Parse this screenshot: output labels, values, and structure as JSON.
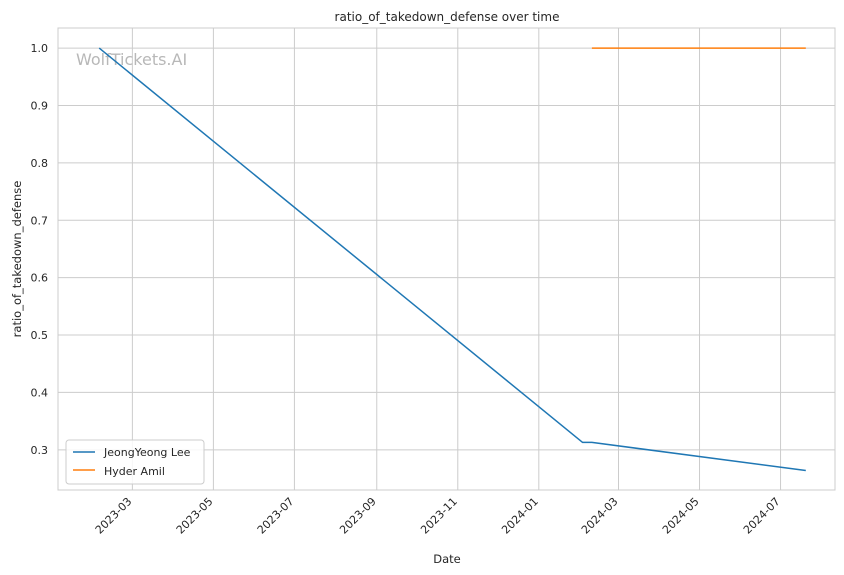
{
  "chart_data": {
    "type": "line",
    "title": "ratio_of_takedown_defense over time",
    "xlabel": "Date",
    "ylabel": "ratio_of_takedown_defense",
    "watermark": "WolfTickets.AI",
    "grid": true,
    "legend_position": "lower-left",
    "xlim": [
      "2023-01-04",
      "2024-08-11"
    ],
    "ylim": [
      0.23,
      1.035
    ],
    "x_ticks": [
      {
        "date": "2023-03-01",
        "label": "2023-03"
      },
      {
        "date": "2023-05-01",
        "label": "2023-05"
      },
      {
        "date": "2023-07-01",
        "label": "2023-07"
      },
      {
        "date": "2023-09-01",
        "label": "2023-09"
      },
      {
        "date": "2023-11-01",
        "label": "2023-11"
      },
      {
        "date": "2024-01-01",
        "label": "2024-01"
      },
      {
        "date": "2024-03-01",
        "label": "2024-03"
      },
      {
        "date": "2024-05-01",
        "label": "2024-05"
      },
      {
        "date": "2024-07-01",
        "label": "2024-07"
      }
    ],
    "y_ticks": [
      0.3,
      0.4,
      0.5,
      0.6,
      0.7,
      0.8,
      0.9,
      1.0
    ],
    "y_tick_labels": [
      "0.3",
      "0.4",
      "0.5",
      "0.6",
      "0.7",
      "0.8",
      "0.9",
      "1.0"
    ],
    "series": [
      {
        "name": "JeongYeong Lee",
        "color": "#1f77b4",
        "points": [
          {
            "x": "2023-02-04",
            "y": 1.0
          },
          {
            "x": "2024-02-03",
            "y": 0.313
          },
          {
            "x": "2024-02-10",
            "y": 0.313
          },
          {
            "x": "2024-07-20",
            "y": 0.264
          }
        ]
      },
      {
        "name": "Hyder Amil",
        "color": "#ff7f0e",
        "points": [
          {
            "x": "2024-02-10",
            "y": 1.0
          },
          {
            "x": "2024-07-20",
            "y": 1.0
          }
        ]
      }
    ]
  }
}
